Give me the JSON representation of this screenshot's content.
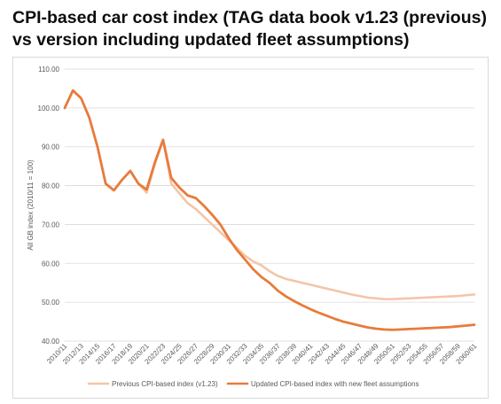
{
  "title": "CPI-based car cost index (TAG data book v1.23 (previous) vs version including updated fleet assumptions)",
  "chart_data": {
    "type": "line",
    "title": "CPI-based car cost index (TAG data book v1.23 (previous) vs version including updated fleet assumptions)",
    "xlabel": "",
    "ylabel": "All GB index (2010/11 = 100)",
    "ylim": [
      40,
      110
    ],
    "yticks": [
      "40.00",
      "50.00",
      "60.00",
      "70.00",
      "80.00",
      "90.00",
      "100.00",
      "110.00"
    ],
    "grid": true,
    "legend": "bottom",
    "x": [
      "2010/11",
      "2011/12",
      "2012/13",
      "2013/14",
      "2014/15",
      "2015/16",
      "2016/17",
      "2017/18",
      "2018/19",
      "2019/20",
      "2020/21",
      "2021/22",
      "2022/23",
      "2023/24",
      "2024/25",
      "2025/26",
      "2026/27",
      "2027/28",
      "2028/29",
      "2029/30",
      "2030/31",
      "2031/32",
      "2032/33",
      "2033/34",
      "2034/35",
      "2035/36",
      "2036/37",
      "2037/38",
      "2038/39",
      "2039/40",
      "2040/41",
      "2041/42",
      "2042/43",
      "2043/44",
      "2044/45",
      "2045/46",
      "2046/47",
      "2047/48",
      "2048/49",
      "2049/50",
      "2050/51",
      "2051/52",
      "2052/53",
      "2053/54",
      "2054/55",
      "2055/56",
      "2056/57",
      "2057/58",
      "2058/59",
      "2059/60",
      "2060/61"
    ],
    "xtick_labels": [
      "2010/11",
      "2012/13",
      "2014/15",
      "2016/17",
      "2018/19",
      "2020/21",
      "2022/23",
      "2024/25",
      "2026/27",
      "2028/29",
      "2030/31",
      "2032/33",
      "2034/35",
      "2036/37",
      "2038/39",
      "2040/41",
      "2042/43",
      "2044/45",
      "2046/47",
      "2048/49",
      "2050/51",
      "2052/53",
      "2054/55",
      "2056/57",
      "2058/59",
      "2060/61"
    ],
    "series": [
      {
        "name": "Previous CPI-based index (v1.23)",
        "color": "#f4c5a8",
        "values": [
          100.0,
          104.5,
          102.5,
          97.5,
          90.0,
          80.5,
          78.8,
          81.5,
          83.8,
          80.5,
          78.2,
          85.5,
          91.8,
          80.5,
          78.0,
          75.5,
          74.0,
          72.0,
          70.0,
          68.0,
          66.0,
          64.0,
          62.0,
          60.5,
          59.5,
          58.0,
          56.8,
          56.0,
          55.5,
          55.0,
          54.5,
          54.0,
          53.5,
          53.0,
          52.5,
          52.0,
          51.6,
          51.2,
          51.0,
          50.8,
          50.8,
          50.9,
          51.0,
          51.1,
          51.2,
          51.3,
          51.4,
          51.5,
          51.6,
          51.8,
          52.0
        ]
      },
      {
        "name": "Updated CPI-based index with new fleet assumptions",
        "color": "#e87b3c",
        "values": [
          100.0,
          104.5,
          102.5,
          97.5,
          90.0,
          80.5,
          78.8,
          81.5,
          83.8,
          80.5,
          79.0,
          86.0,
          91.8,
          82.0,
          79.5,
          77.5,
          76.8,
          74.8,
          72.5,
          70.0,
          66.5,
          63.5,
          61.0,
          58.5,
          56.5,
          55.0,
          53.0,
          51.5,
          50.3,
          49.2,
          48.2,
          47.3,
          46.5,
          45.7,
          45.0,
          44.5,
          44.0,
          43.5,
          43.2,
          43.0,
          42.9,
          43.0,
          43.1,
          43.2,
          43.3,
          43.4,
          43.5,
          43.6,
          43.8,
          44.0,
          44.2
        ]
      }
    ]
  }
}
